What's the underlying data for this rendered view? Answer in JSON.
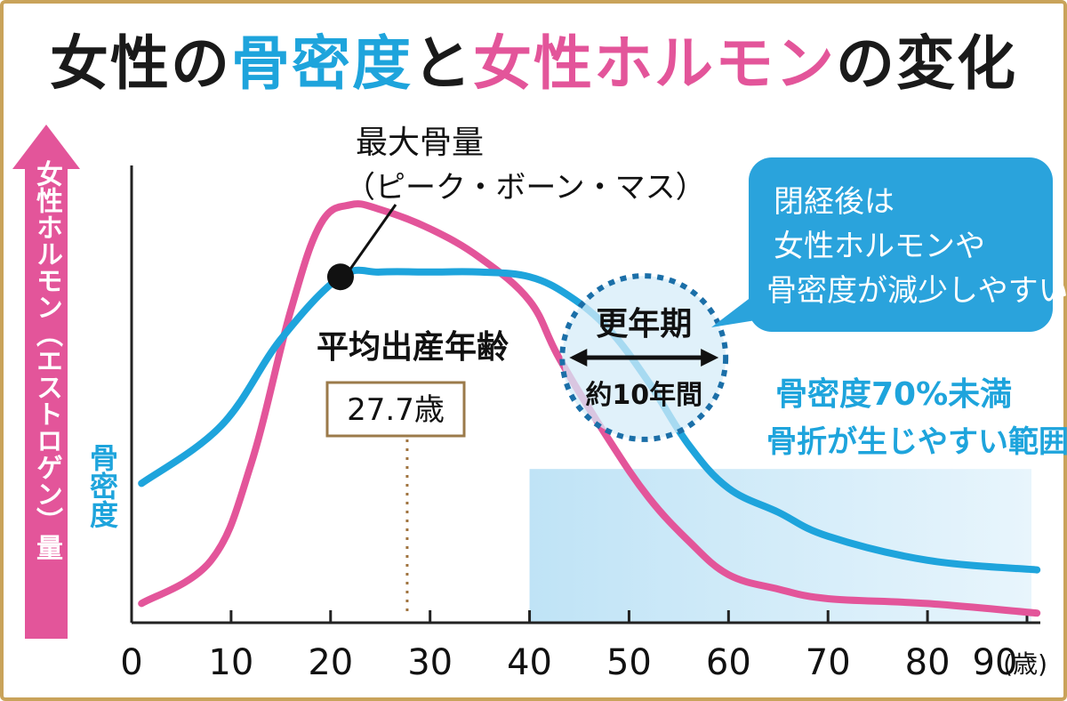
{
  "colors": {
    "frame": "#c9a35a",
    "bone": "#1ea4dc",
    "hormone": "#e3559a",
    "range_fill": "#bfe3f6",
    "callout": "#2aa3dc",
    "label_border": "#9b7a4a",
    "birth_line": "#a0743f"
  },
  "title": {
    "part1": "女性の",
    "part2": "骨密度",
    "part3": "と",
    "part4": "女性ホルモン",
    "part5": "の変化"
  },
  "axis": {
    "y_left_label": "女性ホルモン（エストロゲン）量",
    "y_bone_label": "骨密度",
    "x_unit": "(歳)"
  },
  "annotations": {
    "peak_title": "最大骨量",
    "peak_sub": "（ピーク・ボーン・マス）",
    "birth_title": "平均出産年齢",
    "birth_value": "27.7歳",
    "menopause_title": "更年期",
    "menopause_sub": "約10年間",
    "callout_lines": [
      "閉経後は",
      "女性ホルモンや",
      "骨密度が減少しやすい"
    ],
    "fracture_line1": "骨密度70%未満",
    "fracture_line2": "骨折が生じやすい範囲"
  },
  "chart_data": {
    "type": "line",
    "title": "女性の骨密度と女性ホルモンの変化",
    "xlabel": "(歳)",
    "ylabel": "女性ホルモン（エストロゲン）量 / 骨密度",
    "xlim": [
      0,
      90
    ],
    "ylim": [
      0,
      100
    ],
    "x_ticks": [
      "0",
      "10",
      "20",
      "30",
      "40",
      "50",
      "60",
      "70",
      "80",
      "90"
    ],
    "series": [
      {
        "name": "骨密度",
        "color": "#1ea4dc",
        "x": [
          1,
          9,
          15,
          21,
          25,
          30,
          35,
          40,
          44,
          48,
          52,
          56,
          60,
          65,
          70,
          80,
          91
        ],
        "y": [
          29,
          41,
          59,
          72,
          73,
          73,
          73,
          72,
          68,
          61,
          50,
          37,
          28,
          23,
          18,
          13,
          11
        ]
      },
      {
        "name": "女性ホルモン（エストロゲン）量",
        "color": "#e3559a",
        "x": [
          1,
          8,
          12,
          16,
          19,
          22,
          25,
          30,
          35,
          40,
          43,
          48,
          52,
          56,
          60,
          65,
          70,
          80,
          91
        ],
        "y": [
          4,
          13,
          33,
          65,
          83,
          87,
          86,
          82,
          76,
          67,
          55,
          38,
          26,
          17,
          10,
          7,
          5,
          4,
          2
        ]
      }
    ],
    "markers": {
      "peak_bone_mass": {
        "x": 21,
        "y": 72
      },
      "average_birth_age": 27.7,
      "menopause_range": [
        44,
        59
      ],
      "fracture_range": {
        "x_start": 40,
        "y_max": 32
      }
    }
  }
}
